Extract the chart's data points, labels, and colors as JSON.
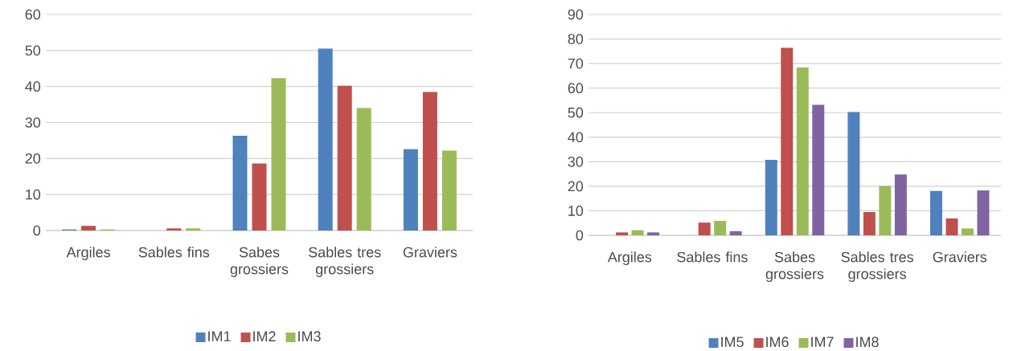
{
  "chart_data": [
    {
      "type": "bar",
      "categories": [
        "Argiles",
        "Sables fins",
        "Sabes grossiers",
        "Sables tres grossiers",
        "Graviers"
      ],
      "series": [
        {
          "name": "IM1",
          "color": "#4f81bd",
          "values": [
            0.3,
            0,
            26.3,
            50.5,
            22.6
          ]
        },
        {
          "name": "IM2",
          "color": "#c0504d",
          "values": [
            1.3,
            0.6,
            18.6,
            40.2,
            38.5
          ]
        },
        {
          "name": "IM3",
          "color": "#9bbb59",
          "values": [
            0.3,
            0.6,
            42.3,
            34.0,
            22.2
          ]
        }
      ],
      "ylim": [
        0,
        60
      ],
      "yticks": [
        0,
        10,
        20,
        30,
        40,
        50,
        60
      ],
      "grid": "y",
      "legend": "bottom"
    },
    {
      "type": "bar",
      "categories": [
        "Argiles",
        "Sables fins",
        "Sabes grossiers",
        "Sables tres grossiers",
        "Graviers"
      ],
      "series": [
        {
          "name": "IM5",
          "color": "#4f81bd",
          "values": [
            0,
            0,
            30.8,
            50.2,
            18.1
          ]
        },
        {
          "name": "IM6",
          "color": "#c0504d",
          "values": [
            1.2,
            5.2,
            76.4,
            9.5,
            6.9
          ]
        },
        {
          "name": "IM7",
          "color": "#9bbb59",
          "values": [
            2.1,
            5.9,
            68.4,
            20.1,
            2.8
          ]
        },
        {
          "name": "IM8",
          "color": "#8064a2",
          "values": [
            1.2,
            1.7,
            53.2,
            24.8,
            18.3
          ]
        }
      ],
      "ylim": [
        0,
        90
      ],
      "yticks": [
        0,
        10,
        20,
        30,
        40,
        50,
        60,
        70,
        80,
        90
      ],
      "grid": "y",
      "legend": "bottom"
    }
  ]
}
